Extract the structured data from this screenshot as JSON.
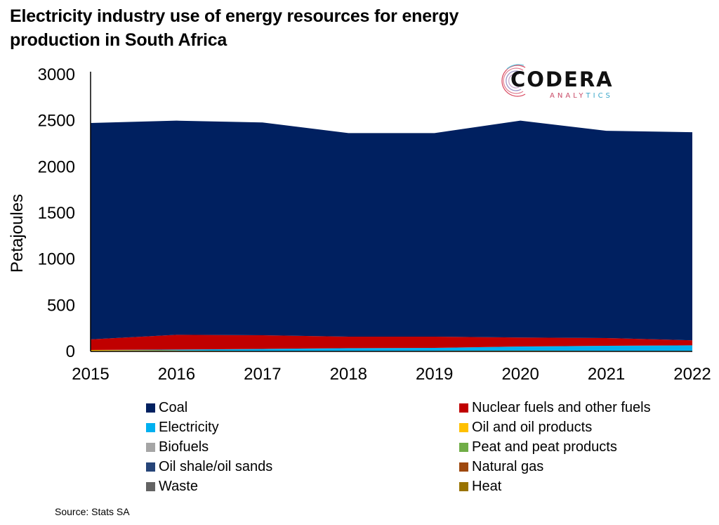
{
  "title": "Electricity industry use of energy resources for energy production in South Africa",
  "logo": {
    "name": "CODERA",
    "subtitle": "ANALYTICS"
  },
  "source": "Source: Stats SA",
  "chart_data": {
    "type": "area",
    "stacked": true,
    "title": "Electricity industry use of energy resources for energy production in South Africa",
    "xlabel": "",
    "ylabel": "Petajoules",
    "x": [
      "2015",
      "2016",
      "2017",
      "2018",
      "2019",
      "2020",
      "2021",
      "2022"
    ],
    "ylim": [
      0,
      3000
    ],
    "yticks": [
      "0",
      "500",
      "1000",
      "1500",
      "2000",
      "2500",
      "3000"
    ],
    "grid": false,
    "legend_position": "bottom",
    "stack_order_bottom_up": [
      "Heat",
      "Oil and oil products",
      "Natural gas",
      "Waste",
      "Biofuels",
      "Peat and peat products",
      "Oil shale/oil sands",
      "Electricity",
      "Nuclear fuels and other fuels",
      "Coal"
    ],
    "series": [
      {
        "name": "Coal",
        "color": "#002060",
        "values": [
          2345,
          2320,
          2305,
          2205,
          2205,
          2350,
          2245,
          2255
        ]
      },
      {
        "name": "Nuclear fuels and other fuels",
        "color": "#C00000",
        "values": [
          115,
          160,
          148,
          125,
          122,
          97,
          84,
          54
        ]
      },
      {
        "name": "Electricity",
        "color": "#00B0F0",
        "values": [
          0,
          10,
          22,
          30,
          32,
          45,
          55,
          60
        ]
      },
      {
        "name": "Oil and oil products",
        "color": "#FFC000",
        "values": [
          12,
          8,
          3,
          3,
          4,
          5,
          3,
          3
        ]
      },
      {
        "name": "Biofuels",
        "color": "#A5A5A5",
        "values": [
          0,
          0,
          0,
          0,
          0,
          0,
          0,
          0
        ]
      },
      {
        "name": "Peat and peat products",
        "color": "#70AD47",
        "values": [
          0,
          0,
          0,
          0,
          0,
          0,
          0,
          0
        ]
      },
      {
        "name": "Oil shale/oil sands",
        "color": "#264478",
        "values": [
          0,
          0,
          0,
          0,
          0,
          0,
          0,
          0
        ]
      },
      {
        "name": "Natural gas",
        "color": "#9E480E",
        "values": [
          0,
          0,
          0,
          0,
          0,
          0,
          0,
          0
        ]
      },
      {
        "name": "Waste",
        "color": "#636363",
        "values": [
          0,
          0,
          0,
          0,
          0,
          0,
          0,
          0
        ]
      },
      {
        "name": "Heat",
        "color": "#997300",
        "values": [
          3,
          2,
          2,
          2,
          2,
          3,
          3,
          3
        ]
      }
    ]
  }
}
